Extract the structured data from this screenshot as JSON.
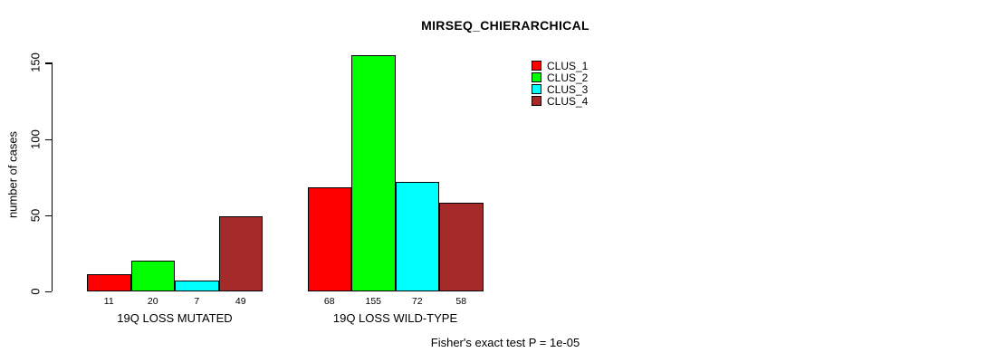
{
  "chart_data": {
    "type": "bar",
    "title": "MIRSEQ_CHIERARCHICAL",
    "ylabel": "number of cases",
    "xlabel": "",
    "categories": [
      "19Q LOSS MUTATED",
      "19Q LOSS WILD-TYPE"
    ],
    "series": [
      {
        "name": "CLUS_1",
        "color": "#FF0000",
        "values": [
          11,
          68
        ]
      },
      {
        "name": "CLUS_2",
        "color": "#00FF00",
        "values": [
          20,
          155
        ]
      },
      {
        "name": "CLUS_3",
        "color": "#00FFFF",
        "values": [
          7,
          72
        ]
      },
      {
        "name": "CLUS_4",
        "color": "#A52A2A",
        "values": [
          49,
          58
        ]
      }
    ],
    "yticks": [
      0,
      50,
      100,
      150
    ],
    "ylim": [
      0,
      155
    ],
    "bar_value_labels_shown": true,
    "grid": false,
    "legend_position": "top-right",
    "annotation": "Fisher's exact test P = 1e-05",
    "background_color": "#FFFFFF",
    "axis_color": "#000000"
  }
}
